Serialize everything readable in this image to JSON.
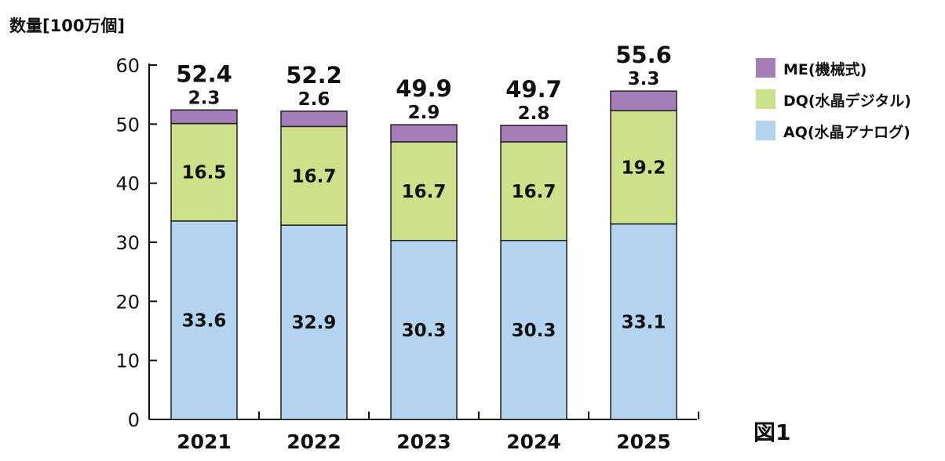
{
  "chart_data": {
    "type": "bar",
    "stacked": true,
    "title": "",
    "ylabel": "数量[100万個]",
    "xlabel": "",
    "ylim": [
      0,
      60
    ],
    "yticks": [
      0,
      10,
      20,
      30,
      40,
      50,
      60
    ],
    "categories": [
      "2021",
      "2022",
      "2023",
      "2024",
      "2025"
    ],
    "series": [
      {
        "name": "AQ(水晶アナログ)",
        "color": "#b4d3ee",
        "values": [
          33.6,
          32.9,
          30.3,
          30.3,
          33.1
        ]
      },
      {
        "name": "DQ(水晶デジタル)",
        "color": "#cde18a",
        "values": [
          16.5,
          16.7,
          16.7,
          16.7,
          19.2
        ]
      },
      {
        "name": "ME(機械式)",
        "color": "#a57db8",
        "values": [
          2.3,
          2.6,
          2.9,
          2.8,
          3.3
        ]
      }
    ],
    "totals": [
      52.4,
      52.2,
      49.9,
      49.7,
      55.6
    ],
    "value_labels": [
      [
        "33.6",
        "32.9",
        "30.3",
        "30.3",
        "33.1"
      ],
      [
        "16.5",
        "16.7",
        "16.7",
        "16.7",
        "19.2"
      ],
      [
        "2.3",
        "2.6",
        "2.9",
        "2.8",
        "3.3"
      ]
    ],
    "total_labels": [
      "52.4",
      "52.2",
      "49.9",
      "49.7",
      "55.6"
    ],
    "legend": {
      "placement": "right",
      "order": [
        "ME(機械式)",
        "DQ(水晶デジタル)",
        "AQ(水晶アナログ)"
      ]
    },
    "figure_label": "図1",
    "grid": false
  }
}
